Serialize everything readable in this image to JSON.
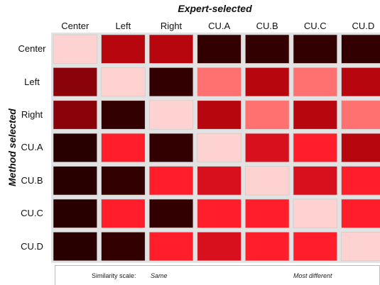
{
  "chart_data": {
    "type": "heatmap",
    "title": "Expert-selected",
    "xlabel": "Expert-selected",
    "ylabel": "Method selected",
    "columns": [
      "Center",
      "Left",
      "Right",
      "CU.A",
      "CU.B",
      "CU.C",
      "CU.D"
    ],
    "rows": [
      "Center",
      "Left",
      "Right",
      "CU.A",
      "CU.B",
      "CU.C",
      "CU.D"
    ],
    "values": [
      [
        0,
        6,
        6,
        9,
        9,
        9,
        9
      ],
      [
        7,
        0,
        9,
        2,
        6,
        2,
        6
      ],
      [
        7,
        9,
        0,
        6,
        2,
        6,
        2
      ],
      [
        10,
        4,
        9,
        0,
        5,
        4,
        6
      ],
      [
        10,
        9,
        4,
        5,
        0,
        5,
        4
      ],
      [
        10,
        4,
        9,
        4,
        4,
        0,
        4
      ],
      [
        10,
        9,
        4,
        5,
        4,
        4,
        0
      ]
    ],
    "color_scale": [
      "#ffd2d2",
      "#ff9e9e",
      "#ff7070",
      "#ff4848",
      "#ff1e2a",
      "#d80f1c",
      "#b8060f",
      "#8a020a",
      "#5a0003",
      "#320000",
      "#280000"
    ],
    "legend": {
      "label": "Similarity scale:",
      "low": "Same",
      "high": "Most different",
      "steps": 9
    }
  }
}
